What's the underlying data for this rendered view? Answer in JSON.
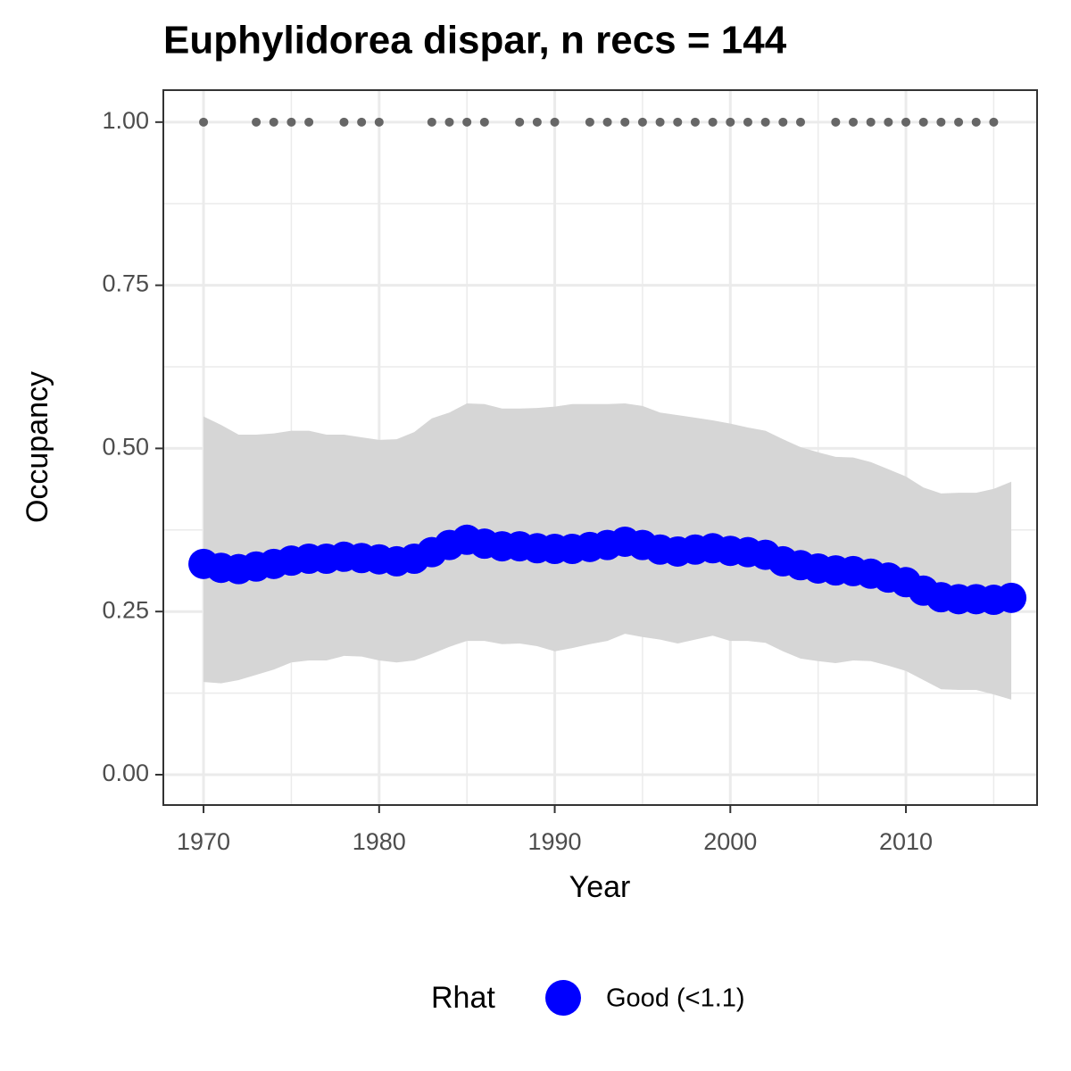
{
  "chart_data": {
    "type": "line",
    "title": "Euphylidorea dispar, n recs = 144",
    "x_label": "Year",
    "y_label": "Occupancy",
    "legend_title": "Rhat",
    "legend_position": "bottom",
    "grid": true,
    "x": [
      1970,
      1971,
      1972,
      1973,
      1974,
      1975,
      1976,
      1977,
      1978,
      1979,
      1980,
      1981,
      1982,
      1983,
      1984,
      1985,
      1986,
      1987,
      1988,
      1989,
      1990,
      1991,
      1992,
      1993,
      1994,
      1995,
      1996,
      1997,
      1998,
      1999,
      2000,
      2001,
      2002,
      2003,
      2004,
      2005,
      2006,
      2007,
      2008,
      2009,
      2010,
      2011,
      2012,
      2013,
      2014,
      2015,
      2016
    ],
    "series": [
      {
        "name": "Good (<1.1)",
        "color": "#0000ff",
        "values": [
          0.323,
          0.317,
          0.315,
          0.319,
          0.323,
          0.328,
          0.331,
          0.331,
          0.334,
          0.332,
          0.33,
          0.327,
          0.331,
          0.341,
          0.352,
          0.36,
          0.354,
          0.35,
          0.35,
          0.347,
          0.346,
          0.346,
          0.349,
          0.352,
          0.357,
          0.352,
          0.345,
          0.342,
          0.345,
          0.347,
          0.343,
          0.341,
          0.337,
          0.327,
          0.321,
          0.316,
          0.313,
          0.312,
          0.308,
          0.302,
          0.295,
          0.282,
          0.272,
          0.269,
          0.269,
          0.268,
          0.271
        ]
      }
    ],
    "ci_upper": [
      0.549,
      0.536,
      0.521,
      0.521,
      0.523,
      0.527,
      0.527,
      0.521,
      0.521,
      0.517,
      0.513,
      0.514,
      0.525,
      0.546,
      0.555,
      0.569,
      0.568,
      0.561,
      0.561,
      0.562,
      0.564,
      0.568,
      0.568,
      0.568,
      0.569,
      0.565,
      0.555,
      0.551,
      0.547,
      0.543,
      0.538,
      0.532,
      0.527,
      0.514,
      0.502,
      0.494,
      0.487,
      0.486,
      0.479,
      0.468,
      0.457,
      0.44,
      0.431,
      0.432,
      0.432,
      0.438,
      0.449
    ],
    "ci_lower": [
      0.142,
      0.14,
      0.145,
      0.153,
      0.161,
      0.172,
      0.175,
      0.175,
      0.182,
      0.181,
      0.175,
      0.172,
      0.175,
      0.185,
      0.196,
      0.205,
      0.205,
      0.2,
      0.201,
      0.197,
      0.189,
      0.194,
      0.2,
      0.205,
      0.216,
      0.211,
      0.207,
      0.201,
      0.207,
      0.213,
      0.205,
      0.205,
      0.202,
      0.189,
      0.178,
      0.174,
      0.171,
      0.175,
      0.174,
      0.167,
      0.159,
      0.145,
      0.131,
      0.13,
      0.13,
      0.123,
      0.115
    ],
    "band_color": "#d6d6d6",
    "record_years": [
      1970,
      1973,
      1974,
      1975,
      1976,
      1978,
      1979,
      1980,
      1983,
      1984,
      1985,
      1986,
      1988,
      1989,
      1990,
      1992,
      1993,
      1994,
      1995,
      1996,
      1997,
      1998,
      1999,
      2000,
      2001,
      2002,
      2003,
      2004,
      2006,
      2007,
      2008,
      2009,
      2010,
      2011,
      2012,
      2013,
      2014,
      2015
    ],
    "record_value": 1,
    "record_color": "#666666",
    "xlim": [
      1967.71,
      2017.47
    ],
    "ylim": [
      -0.0465,
      1.049
    ],
    "xticks": [
      1970,
      1980,
      1990,
      2000,
      2010
    ],
    "xminor": [
      1975,
      1985,
      1995,
      2005,
      2015
    ],
    "yticks": [
      {
        "value": 0,
        "label": "0.00"
      },
      {
        "value": 0.25,
        "label": "0.25"
      },
      {
        "value": 0.5,
        "label": "0.50"
      },
      {
        "value": 0.75,
        "label": "0.75"
      },
      {
        "value": 1,
        "label": "1.00"
      }
    ],
    "yminor": [
      0.125,
      0.375,
      0.625,
      0.875
    ]
  }
}
